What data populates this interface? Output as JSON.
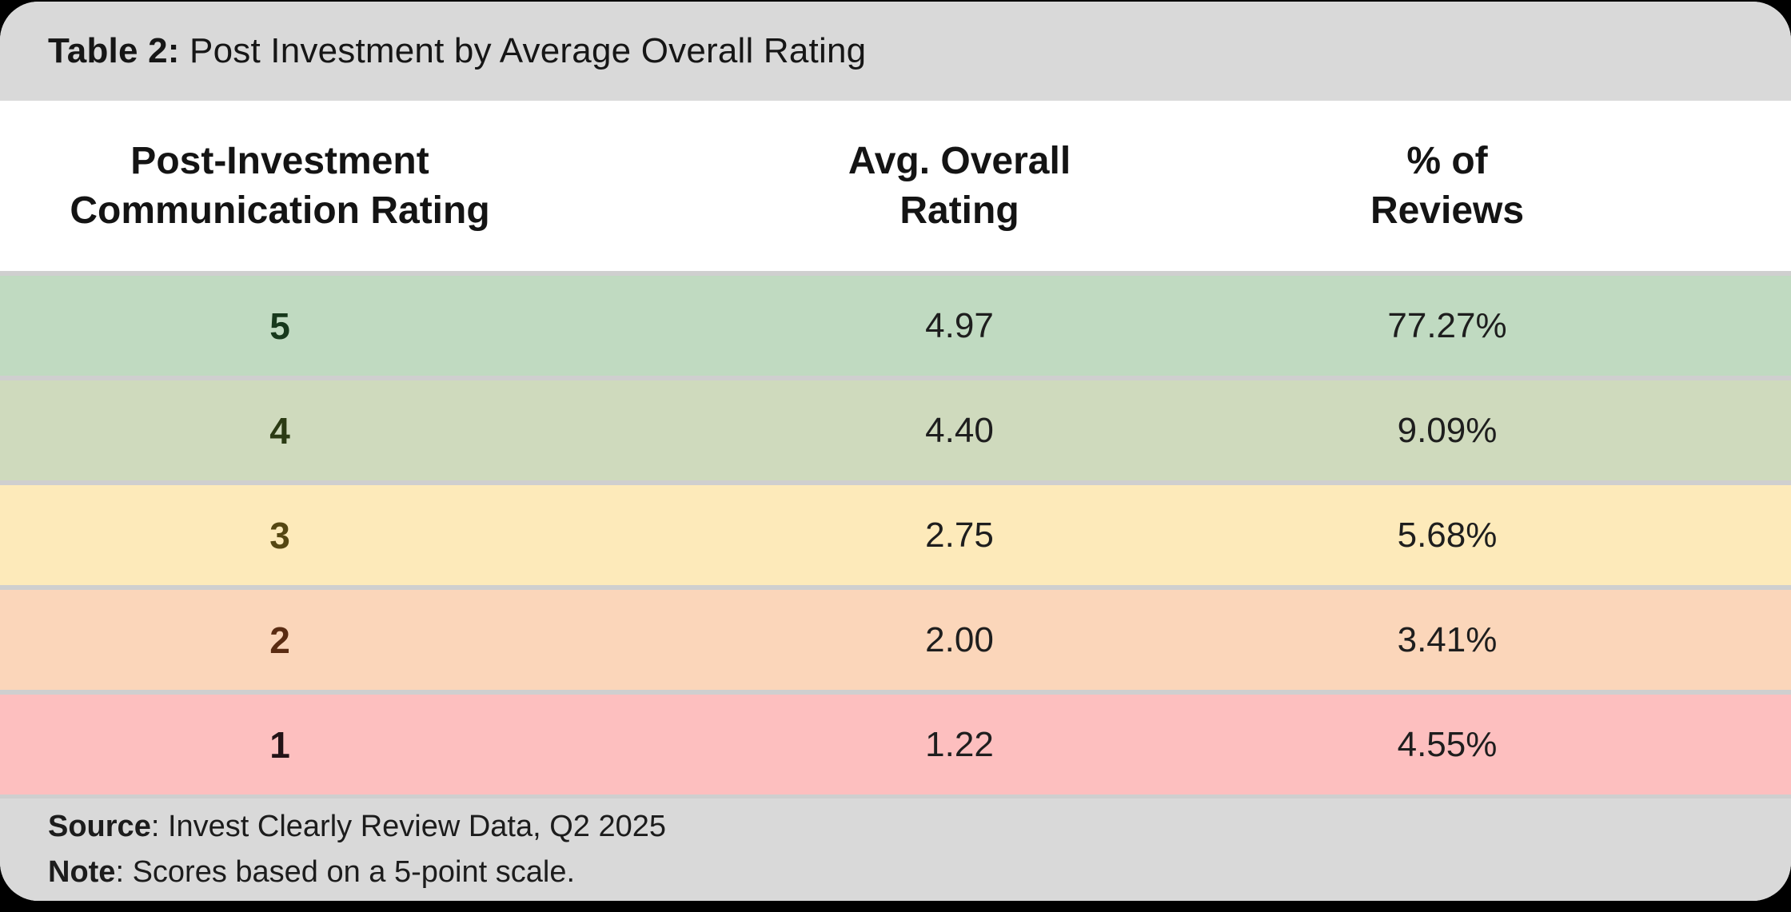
{
  "title": {
    "prefix": "Table 2:",
    "text": " Post Investment by Average Overall Rating"
  },
  "columns": [
    {
      "line1": "Post-Investment",
      "line2": "Communication Rating"
    },
    {
      "line1": "Avg. Overall",
      "line2": "Rating"
    },
    {
      "line1": "% of",
      "line2": "Reviews"
    }
  ],
  "rows": [
    {
      "rating": "5",
      "avg": "4.97",
      "pct": "77.27%",
      "bg": "#c0dac1",
      "rating_color": "#17391c"
    },
    {
      "rating": "4",
      "avg": "4.40",
      "pct": "9.09%",
      "bg": "#cfdabd",
      "rating_color": "#2b3b14"
    },
    {
      "rating": "3",
      "avg": "2.75",
      "pct": "5.68%",
      "bg": "#fdeaba",
      "rating_color": "#554712"
    },
    {
      "rating": "2",
      "avg": "2.00",
      "pct": "3.41%",
      "bg": "#fbd6ba",
      "rating_color": "#5a2c12"
    },
    {
      "rating": "1",
      "avg": "1.22",
      "pct": "4.55%",
      "bg": "#fdbfbf",
      "rating_color": "#221317"
    }
  ],
  "footer": {
    "source_label": "Source",
    "source_rest": ": Invest Clearly Review Data, Q2 2025",
    "note_label": "Note",
    "note_rest": ": Scores based on a 5-point scale."
  },
  "colors": {
    "page_bg": "#000000",
    "card_gray": "#d9d9d9",
    "row_divider": "#cfcfcf",
    "table_body_bg": "#ffffff"
  },
  "chart_data": {
    "type": "table",
    "title": "Table 2: Post Investment by Average Overall Rating",
    "columns": [
      "Post-Investment Communication Rating",
      "Avg. Overall Rating",
      "% of Reviews"
    ],
    "rows": [
      {
        "communication_rating": 5,
        "avg_overall_rating": 4.97,
        "pct_of_reviews": 77.27
      },
      {
        "communication_rating": 4,
        "avg_overall_rating": 4.4,
        "pct_of_reviews": 9.09
      },
      {
        "communication_rating": 3,
        "avg_overall_rating": 2.75,
        "pct_of_reviews": 5.68
      },
      {
        "communication_rating": 2,
        "avg_overall_rating": 2.0,
        "pct_of_reviews": 3.41
      },
      {
        "communication_rating": 1,
        "avg_overall_rating": 1.22,
        "pct_of_reviews": 4.55
      }
    ],
    "source": "Invest Clearly Review Data, Q2 2025",
    "note": "Scores based on a 5-point scale.",
    "scale": [
      1,
      5
    ]
  }
}
